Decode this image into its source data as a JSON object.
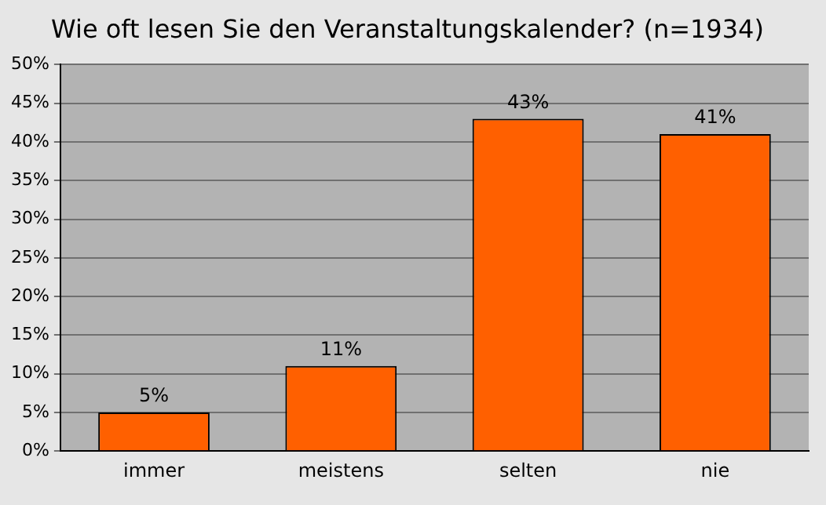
{
  "chart_data": {
    "type": "bar",
    "title": "Wie oft lesen Sie den Veranstaltungskalender? (n=1934)",
    "categories": [
      "immer",
      "meistens",
      "selten",
      "nie"
    ],
    "values": [
      5,
      11,
      43,
      41
    ],
    "value_labels": [
      "5%",
      "11%",
      "43%",
      "41%"
    ],
    "color": "#ff6000",
    "ylim": [
      0,
      50
    ],
    "yticks": [
      {
        "value": 0,
        "label": "0%"
      },
      {
        "value": 5,
        "label": "5%"
      },
      {
        "value": 10,
        "label": "10%"
      },
      {
        "value": 15,
        "label": "15%"
      },
      {
        "value": 20,
        "label": "20%"
      },
      {
        "value": 25,
        "label": "25%"
      },
      {
        "value": 30,
        "label": "30%"
      },
      {
        "value": 35,
        "label": "35%"
      },
      {
        "value": 40,
        "label": "40%"
      },
      {
        "value": 45,
        "label": "45%"
      },
      {
        "value": 50,
        "label": "50%"
      }
    ],
    "grid": "y",
    "legend": false
  }
}
